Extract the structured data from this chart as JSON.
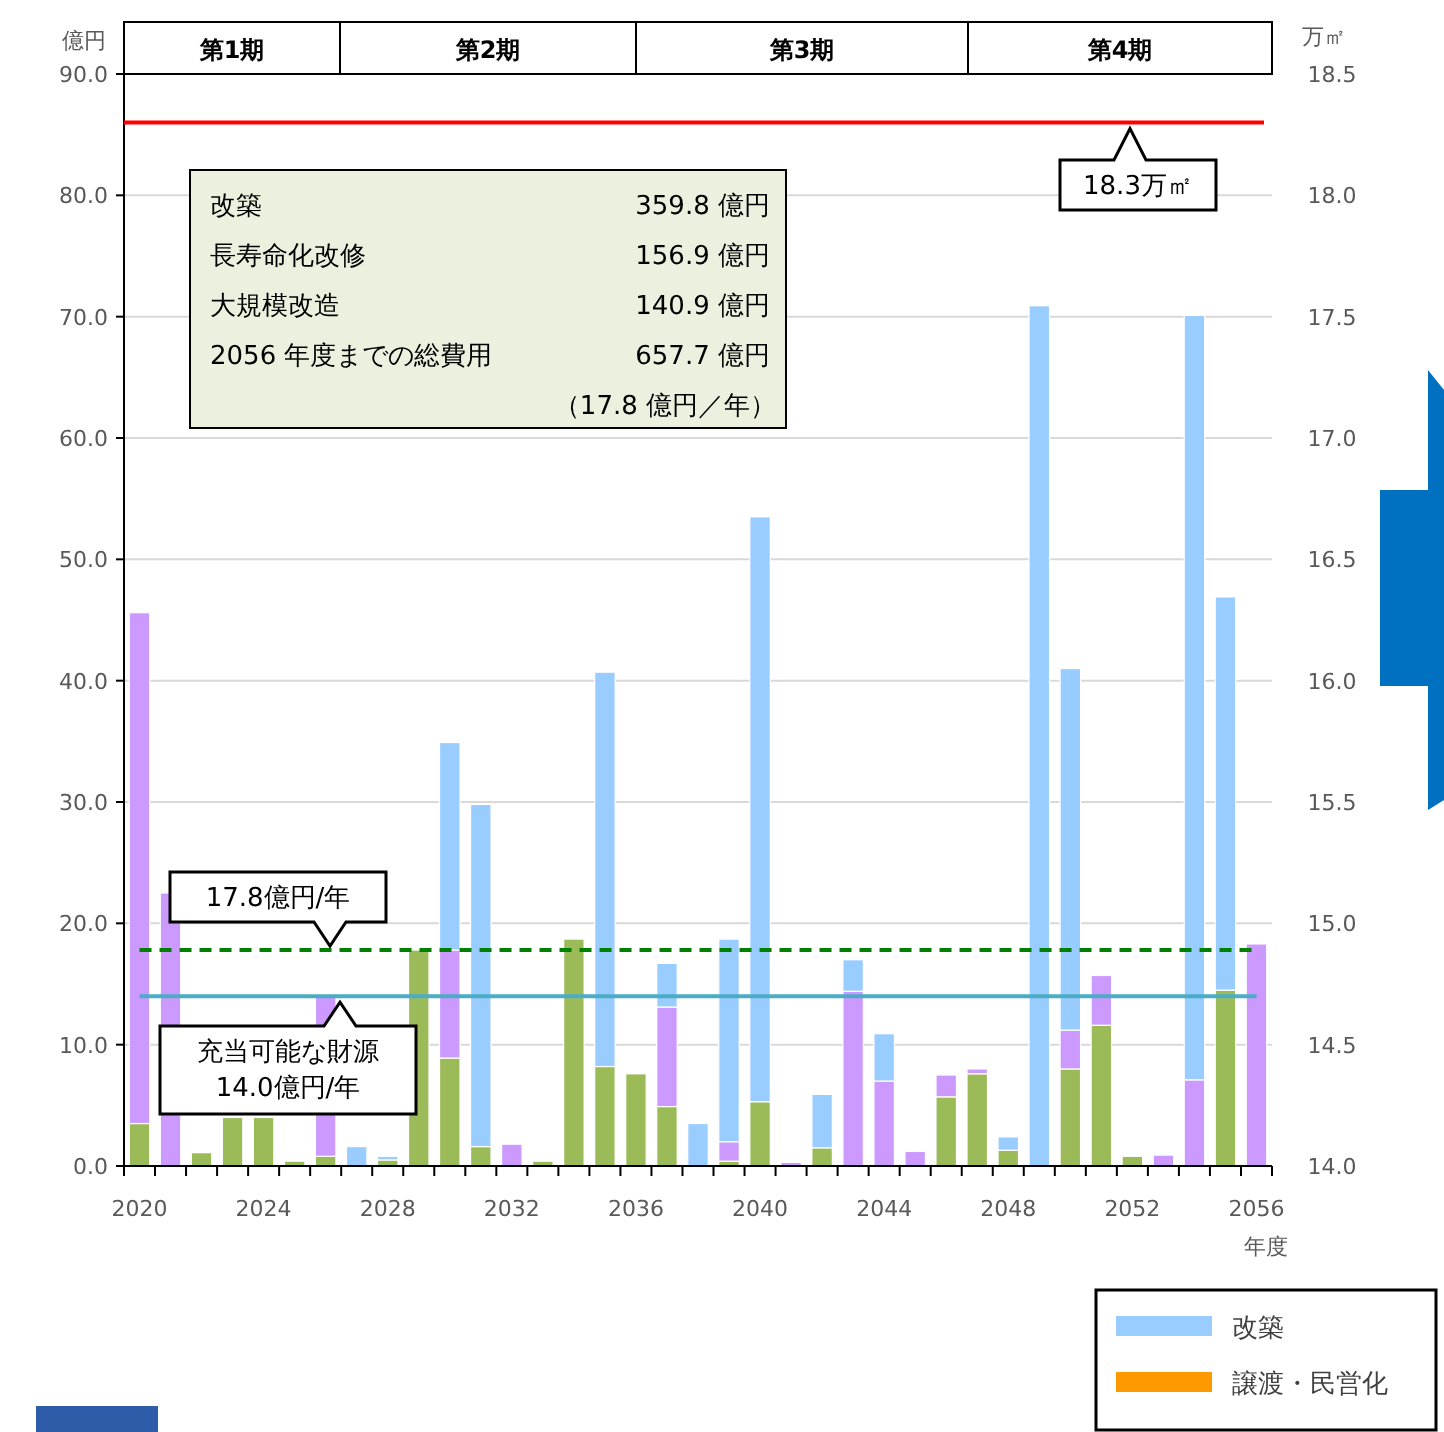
{
  "chart_data": {
    "type": "bar",
    "stacked": true,
    "categories": [
      "2020",
      null,
      null,
      null,
      "2024",
      null,
      null,
      null,
      "2028",
      null,
      null,
      null,
      "2032",
      null,
      null,
      null,
      "2036",
      null,
      null,
      null,
      "2040",
      null,
      null,
      null,
      "2044",
      null,
      null,
      null,
      "2048",
      null,
      null,
      null,
      "2052",
      null,
      null,
      null,
      "2056"
    ],
    "series": [
      {
        "color": "#9bbb59",
        "values": [
          3.5,
          0,
          1.1,
          4.0,
          4.0,
          0.4,
          0.8,
          null,
          0.5,
          17.8,
          8.9,
          1.6,
          0,
          0.4,
          18.7,
          8.2,
          7.6,
          4.9,
          0,
          0.4,
          5.3,
          0,
          1.5,
          0,
          0,
          0,
          5.7,
          7.6,
          1.3,
          0,
          8.0,
          11.6,
          0.8,
          0,
          0,
          14.5,
          0
        ]
      },
      {
        "color": "#cc99ff",
        "values": [
          42.1,
          22.5,
          0,
          0,
          0,
          0,
          13.2,
          0,
          0,
          0,
          8.9,
          0,
          1.8,
          0,
          0,
          0,
          0,
          8.2,
          0,
          1.6,
          0,
          0.3,
          0,
          14.4,
          7.0,
          1.2,
          1.8,
          0.4,
          0,
          0,
          3.2,
          4.1,
          0,
          0.9,
          7.1,
          0,
          18.3
        ]
      },
      {
        "name": "改築",
        "color": "#99ccff",
        "values": [
          0,
          0,
          0,
          0,
          0,
          0,
          0,
          1.6,
          0.3,
          0,
          17.1,
          28.2,
          0,
          0,
          0,
          32.5,
          0,
          3.6,
          3.5,
          16.7,
          48.2,
          0,
          4.4,
          2.6,
          3.9,
          0,
          0,
          0,
          1.1,
          70.9,
          29.8,
          0,
          0,
          0,
          63.0,
          32.4,
          0
        ]
      },
      {
        "name": "譲渡・民営化",
        "color": "#ff9900",
        "values": [
          null,
          null,
          null,
          null,
          null,
          null,
          null,
          null,
          null,
          null,
          null,
          null,
          null,
          null,
          null,
          null,
          null,
          null,
          null,
          null,
          null,
          null,
          null,
          null,
          null,
          null,
          null,
          null,
          null,
          null,
          null,
          null,
          null,
          null,
          null,
          null,
          null
        ]
      }
    ],
    "ylim": [
      0,
      90
    ],
    "yticks": [
      {
        "value": 0,
        "label": "0.0"
      },
      {
        "value": 10,
        "label": "10.0"
      },
      {
        "value": 20,
        "label": "20.0"
      },
      {
        "value": 30,
        "label": "30.0"
      },
      {
        "value": 40,
        "label": "40.0"
      },
      {
        "value": 50,
        "label": "50.0"
      },
      {
        "value": 60,
        "label": "60.0"
      },
      {
        "value": 70,
        "label": "70.0"
      },
      {
        "value": 80,
        "label": "80.0"
      },
      {
        "value": 90,
        "label": "90.0"
      }
    ],
    "y2lim": [
      14,
      18.5
    ],
    "y2ticks": [
      {
        "value": 14,
        "label": "14.0"
      },
      {
        "value": 14.5,
        "label": "14.5"
      },
      {
        "value": 15,
        "label": "15.0"
      },
      {
        "value": 15.5,
        "label": "15.5"
      },
      {
        "value": 16,
        "label": "16.0"
      },
      {
        "value": 16.5,
        "label": "16.5"
      },
      {
        "value": 17,
        "label": "17.0"
      },
      {
        "value": 17.5,
        "label": "17.5"
      },
      {
        "value": 18,
        "label": "18.0"
      },
      {
        "value": 18.5,
        "label": "18.5"
      }
    ],
    "ylabel": "億円",
    "y2label": "万㎡",
    "xlabel": "年度",
    "grid": "y",
    "legend": "bottom right",
    "ref_lines": [
      {
        "axis": "y2",
        "value": 18.3,
        "label": "18.3万㎡",
        "color": "#ff0000",
        "line_style": "solid"
      },
      {
        "axis": "y",
        "value": 17.8,
        "label": "17.8億円/年",
        "color": "#008000",
        "line_style": "dashed"
      },
      {
        "axis": "y",
        "value": 14.0,
        "label": "充当可能な財源\n14.0億円/年",
        "color": "#4bacc6",
        "line_style": "solid"
      }
    ],
    "annotations": [
      "第1期",
      "第2期",
      "第3期",
      "第4期",
      "改築",
      "359.8 億円",
      "長寿命化改修",
      "156.9 億円",
      "大規模改造",
      "140.9 億円",
      "2056 年度までの総費用",
      "657.7 億円",
      "（17.8 億円／年）"
    ]
  }
}
